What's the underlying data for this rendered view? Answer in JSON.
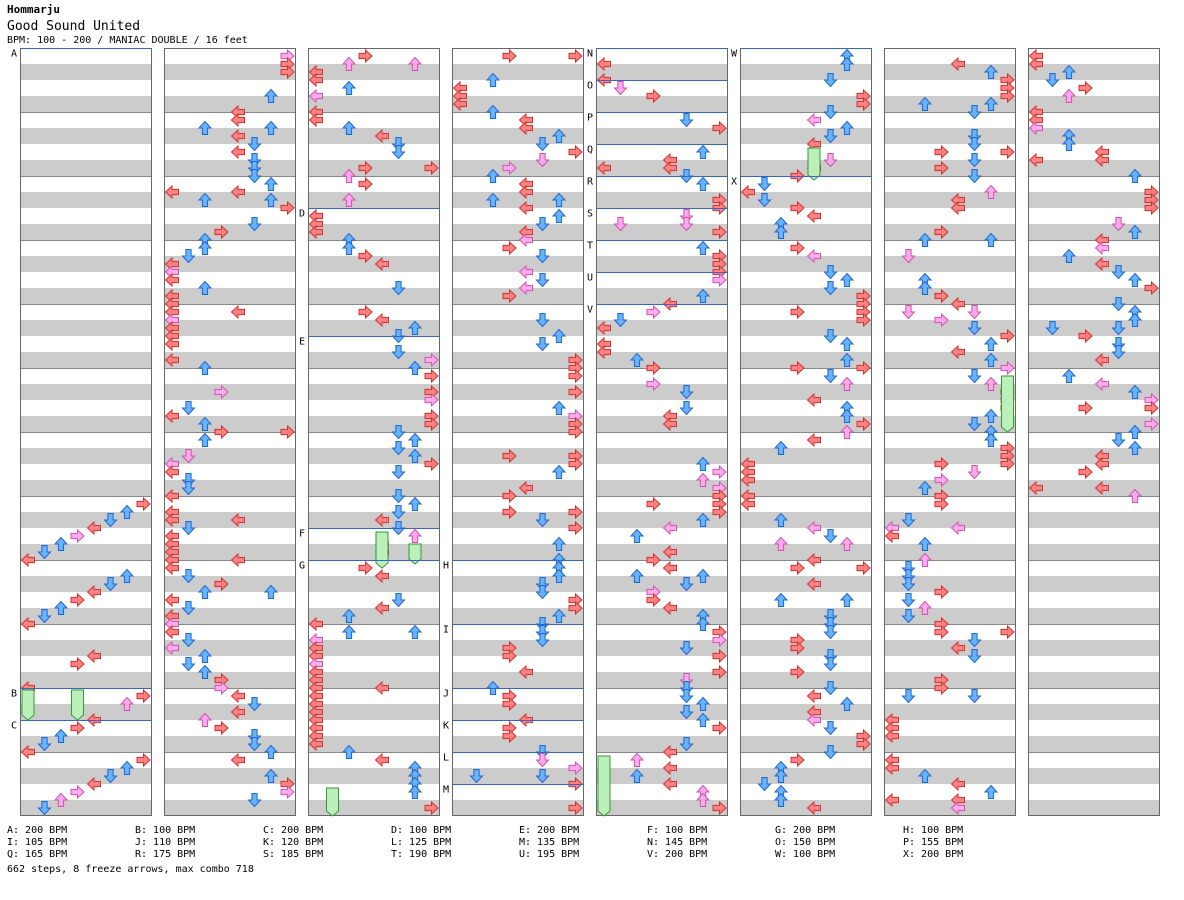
{
  "header": {
    "artist": "Hommarju",
    "title": "Good Sound United",
    "info": "BPM: 100 - 200 / MANIAC DOUBLE / 16 feet"
  },
  "colors": {
    "band": "#cccccc",
    "border": "#666666",
    "bpm_line": "#3366cc",
    "red": "#ff8080",
    "red_edge": "#cc3333",
    "blue": "#66b3ff",
    "blue_edge": "#2266cc",
    "pink": "#ffaaee",
    "pink_edge": "#cc55aa",
    "freeze": "#bbf0bb",
    "freeze_edge": "#339933"
  },
  "markers": [
    {
      "label": "A",
      "col": 0,
      "measure": 0
    },
    {
      "label": "B",
      "col": 0,
      "measure": 10
    },
    {
      "label": "C",
      "col": 0,
      "measure": 10.5
    },
    {
      "label": "D",
      "col": 2,
      "measure": 2.5
    },
    {
      "label": "E",
      "col": 2,
      "measure": 4.5
    },
    {
      "label": "F",
      "col": 2,
      "measure": 7.5
    },
    {
      "label": "G",
      "col": 2,
      "measure": 8
    },
    {
      "label": "H",
      "col": 3,
      "measure": 8
    },
    {
      "label": "I",
      "col": 3,
      "measure": 9
    },
    {
      "label": "J",
      "col": 3,
      "measure": 10
    },
    {
      "label": "K",
      "col": 3,
      "measure": 10.5
    },
    {
      "label": "L",
      "col": 3,
      "measure": 11
    },
    {
      "label": "M",
      "col": 3,
      "measure": 11.5
    },
    {
      "label": "N",
      "col": 4,
      "measure": 0
    },
    {
      "label": "O",
      "col": 4,
      "measure": 0.5
    },
    {
      "label": "P",
      "col": 4,
      "measure": 1
    },
    {
      "label": "Q",
      "col": 4,
      "measure": 1.5
    },
    {
      "label": "R",
      "col": 4,
      "measure": 2
    },
    {
      "label": "S",
      "col": 4,
      "measure": 2.5
    },
    {
      "label": "T",
      "col": 4,
      "measure": 3
    },
    {
      "label": "U",
      "col": 4,
      "measure": 3.5
    },
    {
      "label": "V",
      "col": 4,
      "measure": 4
    },
    {
      "label": "W",
      "col": 5,
      "measure": 0
    },
    {
      "label": "X",
      "col": 5,
      "measure": 2
    }
  ],
  "legend": [
    [
      "A: 200 BPM",
      "B: 100 BPM",
      "C: 200 BPM",
      "D: 100 BPM",
      "E: 200 BPM",
      "F: 100 BPM",
      "G: 200 BPM",
      "H: 100 BPM"
    ],
    [
      "I: 105 BPM",
      "J: 110 BPM",
      "K: 120 BPM",
      "L: 125 BPM",
      "M: 135 BPM",
      "N: 145 BPM",
      "O: 150 BPM",
      "P: 155 BPM"
    ],
    [
      "Q: 165 BPM",
      "R: 175 BPM",
      "S: 185 BPM",
      "T: 190 BPM",
      "U: 195 BPM",
      "V: 200 BPM",
      "W: 100 BPM",
      "X: 200 BPM"
    ]
  ],
  "footer": "662 steps, 8 freeze arrows, max combo 718"
}
